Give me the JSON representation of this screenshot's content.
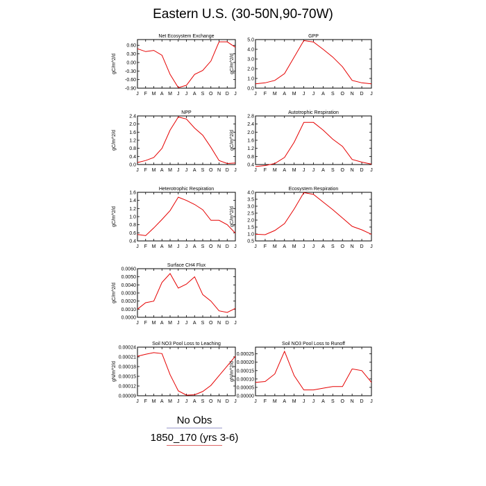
{
  "title": "Eastern U.S. (30-50N,90-70W)",
  "months": [
    "J",
    "F",
    "M",
    "A",
    "M",
    "J",
    "J",
    "A",
    "S",
    "O",
    "N",
    "D",
    "J"
  ],
  "legend": [
    {
      "label": "No Obs",
      "color": "#9999cc"
    },
    {
      "label": "1850_170 (yrs 3-6)",
      "color": "#dd6666"
    }
  ],
  "series_color": "#e60000",
  "chart_data": [
    {
      "type": "line",
      "title": "Net Ecosystem Exchange",
      "ylabel": "gC/m^2/d",
      "ylim": [
        -0.9,
        0.8
      ],
      "yticks": [
        0.6,
        0.3,
        0.0,
        -0.3,
        -0.6,
        -0.9
      ],
      "ytick_labels": [
        "0.60",
        "0.30",
        "0.00",
        "-0.30",
        "-0.60",
        "-0.90"
      ],
      "values": [
        0.48,
        0.38,
        0.42,
        0.25,
        -0.42,
        -0.88,
        -0.8,
        -0.42,
        -0.28,
        0.05,
        0.72,
        0.72,
        0.53
      ]
    },
    {
      "type": "line",
      "title": "GPP",
      "ylabel": "gC/m^2/d",
      "ylim": [
        0.0,
        5.0
      ],
      "yticks": [
        5.0,
        4.0,
        3.0,
        2.0,
        1.0,
        0.0
      ],
      "ytick_labels": [
        "5.0",
        "4.0",
        "3.0",
        "2.0",
        "1.0",
        "0.0"
      ],
      "values": [
        0.45,
        0.55,
        0.8,
        1.5,
        3.2,
        4.9,
        4.75,
        4.0,
        3.2,
        2.2,
        0.8,
        0.55,
        0.45
      ]
    },
    {
      "type": "line",
      "title": "NPP",
      "ylabel": "gC/m^2/d",
      "ylim": [
        0.0,
        2.4
      ],
      "yticks": [
        2.4,
        2.0,
        1.6,
        1.2,
        0.8,
        0.4,
        0.0
      ],
      "ytick_labels": [
        "2.4",
        "2.0",
        "1.6",
        "1.2",
        "0.8",
        "0.4",
        "0.0"
      ],
      "values": [
        0.1,
        0.2,
        0.35,
        0.8,
        1.7,
        2.35,
        2.25,
        1.8,
        1.45,
        0.85,
        0.2,
        0.05,
        0.08
      ]
    },
    {
      "type": "line",
      "title": "Autotrophic Respiration",
      "ylabel": "gC/m^2/d",
      "ylim": [
        0.4,
        2.8
      ],
      "yticks": [
        2.8,
        2.4,
        2.0,
        1.6,
        1.2,
        0.8,
        0.4
      ],
      "ytick_labels": [
        "2.8",
        "2.4",
        "2.0",
        "1.6",
        "1.2",
        "0.8",
        "0.4"
      ],
      "values": [
        0.3,
        0.35,
        0.45,
        0.75,
        1.5,
        2.48,
        2.48,
        2.1,
        1.65,
        1.3,
        0.65,
        0.52,
        0.42
      ]
    },
    {
      "type": "line",
      "title": "Heterotrophic Respiration",
      "ylabel": "gC/m^2/d",
      "ylim": [
        0.4,
        1.6
      ],
      "yticks": [
        1.6,
        1.4,
        1.2,
        1.0,
        0.8,
        0.6,
        0.4
      ],
      "ytick_labels": [
        "1.6",
        "1.4",
        "1.2",
        "1.0",
        "0.8",
        "0.6",
        "0.4"
      ],
      "values": [
        0.56,
        0.53,
        0.72,
        0.93,
        1.15,
        1.48,
        1.4,
        1.3,
        1.17,
        0.91,
        0.91,
        0.8,
        0.59
      ]
    },
    {
      "type": "line",
      "title": "Ecosystem Respiration",
      "ylabel": "gC/m^2/d",
      "ylim": [
        0.5,
        4.0
      ],
      "yticks": [
        4.0,
        3.5,
        3.0,
        2.5,
        2.0,
        1.5,
        1.0,
        0.5
      ],
      "ytick_labels": [
        "4.0",
        "3.5",
        "3.0",
        "2.5",
        "2.0",
        "1.5",
        "1.0",
        "0.5"
      ],
      "values": [
        0.98,
        0.95,
        1.25,
        1.75,
        2.8,
        3.98,
        3.85,
        3.3,
        2.75,
        2.15,
        1.55,
        1.3,
        0.98
      ]
    },
    {
      "type": "line",
      "title": "Surface CH4 Flux",
      "ylabel": "gC/m^2/d",
      "ylim": [
        0.0,
        0.006
      ],
      "yticks": [
        0.006,
        0.005,
        0.004,
        0.003,
        0.002,
        0.001,
        0.0
      ],
      "ytick_labels": [
        "0.0060",
        "0.0050",
        "0.0040",
        "0.0030",
        "0.0020",
        "0.0010",
        "0.0000"
      ],
      "values": [
        0.001,
        0.0018,
        0.002,
        0.0043,
        0.0054,
        0.0036,
        0.0041,
        0.005,
        0.0028,
        0.002,
        0.0008,
        0.0006,
        0.0011
      ]
    },
    {
      "type": "line",
      "title": "Soil NO3 Pool Loss to Leaching",
      "ylabel": "gN/m^2/d",
      "ylim": [
        9e-05,
        0.00024
      ],
      "yticks": [
        0.00024,
        0.00021,
        0.00018,
        0.00015,
        0.00012,
        9e-05
      ],
      "ytick_labels": [
        "0.00024",
        "0.00021",
        "0.00018",
        "0.00015",
        "0.00012",
        "0.00009"
      ],
      "values": [
        0.000212,
        0.000218,
        0.000223,
        0.00022,
        0.000155,
        0.000105,
        9.2e-05,
        9.3e-05,
        0.000103,
        0.000122,
        0.000152,
        0.000182,
        0.000212
      ]
    },
    {
      "type": "line",
      "title": "Soil NO3 Pool Loss to Runoff",
      "ylabel": "gN/m^2/d",
      "ylim": [
        0.0,
        0.00029
      ],
      "yticks": [
        0.00025,
        0.0002,
        0.00015,
        0.0001,
        5e-05,
        0.0
      ],
      "ytick_labels": [
        "0.00025",
        "0.00020",
        "0.00015",
        "0.00010",
        "0.00005",
        "0.00000"
      ],
      "values": [
        8e-05,
        8.5e-05,
        0.00013,
        0.000265,
        0.00012,
        3.5e-05,
        3.5e-05,
        4.5e-05,
        5.5e-05,
        5.5e-05,
        0.00016,
        0.00015,
        8e-05
      ]
    }
  ]
}
